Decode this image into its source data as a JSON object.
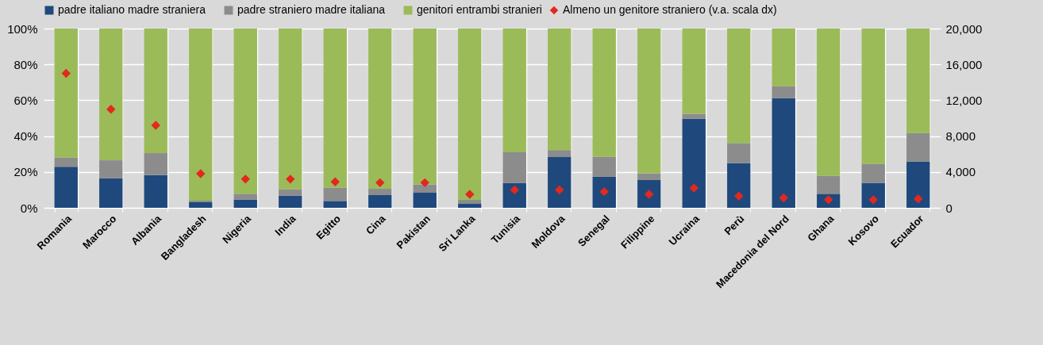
{
  "chart_data": {
    "type": "bar",
    "stacked": true,
    "categories": [
      "Romania",
      "Marocco",
      "Albania",
      "Bangladesh",
      "Nigeria",
      "India",
      "Egitto",
      "Cina",
      "Pakistan",
      "Sri Lanka",
      "Tunisia",
      "Moldova",
      "Senegal",
      "Filippine",
      "Ucraina",
      "Perù",
      "Macedonia del Nord",
      "Ghana",
      "Kosovo",
      "Ecuador"
    ],
    "series": [
      {
        "name": "padre italiano madre straniera",
        "color": "#1f497d",
        "values": [
          22.9,
          16.5,
          18.3,
          3.1,
          4.6,
          6.8,
          3.8,
          7.1,
          8.4,
          2.2,
          13.9,
          28.3,
          17.3,
          15.5,
          49.6,
          24.9,
          61.2,
          7.8,
          13.9,
          25.8
        ]
      },
      {
        "name": "padre straniero madre italiana",
        "color": "#8c8c8c",
        "values": [
          5.1,
          10,
          12.2,
          0.9,
          3.2,
          3.5,
          7.4,
          3.5,
          4.6,
          2.2,
          17.1,
          3.9,
          11.2,
          3.7,
          2.8,
          11.2,
          6.6,
          10,
          10.6,
          15.9
        ]
      },
      {
        "name": "genitori entrambi stranieri",
        "color": "#9bbb59",
        "values": [
          72,
          73.5,
          69.5,
          96,
          92.2,
          89.7,
          88.8,
          89.4,
          87,
          95.6,
          69,
          67.8,
          71.5,
          80.8,
          47.6,
          63.9,
          32.2,
          82.2,
          75.5,
          58.3
        ]
      },
      {
        "name": "Almeno un genitore straniero (v.a. scala dx)",
        "type": "scatter",
        "axis": "y2",
        "marker": "diamond",
        "color": "#e3281e",
        "values": [
          15000,
          11000,
          9200,
          3800,
          3200,
          3200,
          2900,
          2800,
          2800,
          1500,
          2000,
          2000,
          1800,
          1500,
          2200,
          1300,
          1100,
          900,
          900,
          1000
        ]
      }
    ],
    "ylim": [
      0,
      100
    ],
    "yticks": [
      {
        "value": 0,
        "label": "0%"
      },
      {
        "value": 20,
        "label": "20%"
      },
      {
        "value": 40,
        "label": "40%"
      },
      {
        "value": 60,
        "label": "60%"
      },
      {
        "value": 80,
        "label": "80%"
      },
      {
        "value": 100,
        "label": "100%"
      }
    ],
    "y2lim": [
      0,
      20000
    ],
    "y2ticks": [
      0,
      {
        "value": 4000,
        "label": "4,000"
      },
      {
        "value": 8000,
        "label": "8,000"
      },
      {
        "value": 12000,
        "label": "12,000"
      },
      {
        "value": 16000,
        "label": "16,000"
      },
      {
        "value": 20000,
        "label": "20,000"
      }
    ],
    "grid": true,
    "legend": "top"
  }
}
